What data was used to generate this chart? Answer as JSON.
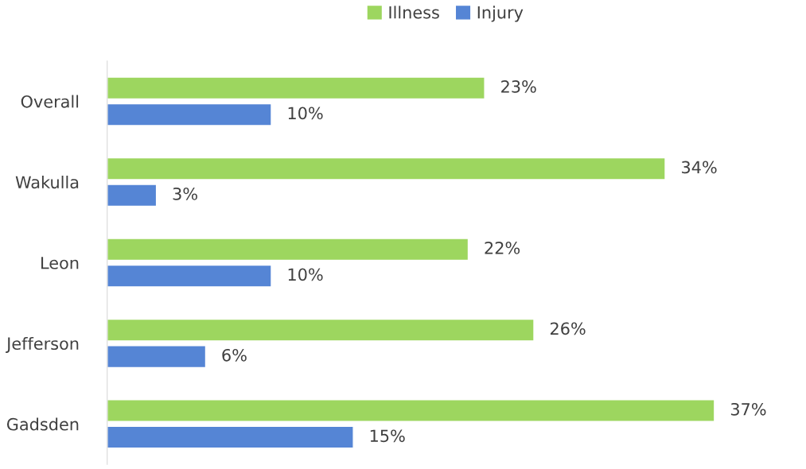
{
  "chart_data": {
    "type": "bar",
    "orientation": "horizontal",
    "categories": [
      "Overall",
      "Wakulla",
      "Leon",
      "Jefferson",
      "Gadsden"
    ],
    "series": [
      {
        "name": "Illness",
        "color": "#9dd65f",
        "values": [
          23,
          34,
          22,
          26,
          37
        ],
        "value_labels": [
          "23%",
          "34%",
          "22%",
          "26%",
          "37%"
        ]
      },
      {
        "name": "Injury",
        "color": "#5585d5",
        "values": [
          10,
          3,
          10,
          6,
          15
        ],
        "value_labels": [
          "10%",
          "3%",
          "10%",
          "6%",
          "15%"
        ]
      }
    ],
    "legend": "top",
    "grid": false
  }
}
